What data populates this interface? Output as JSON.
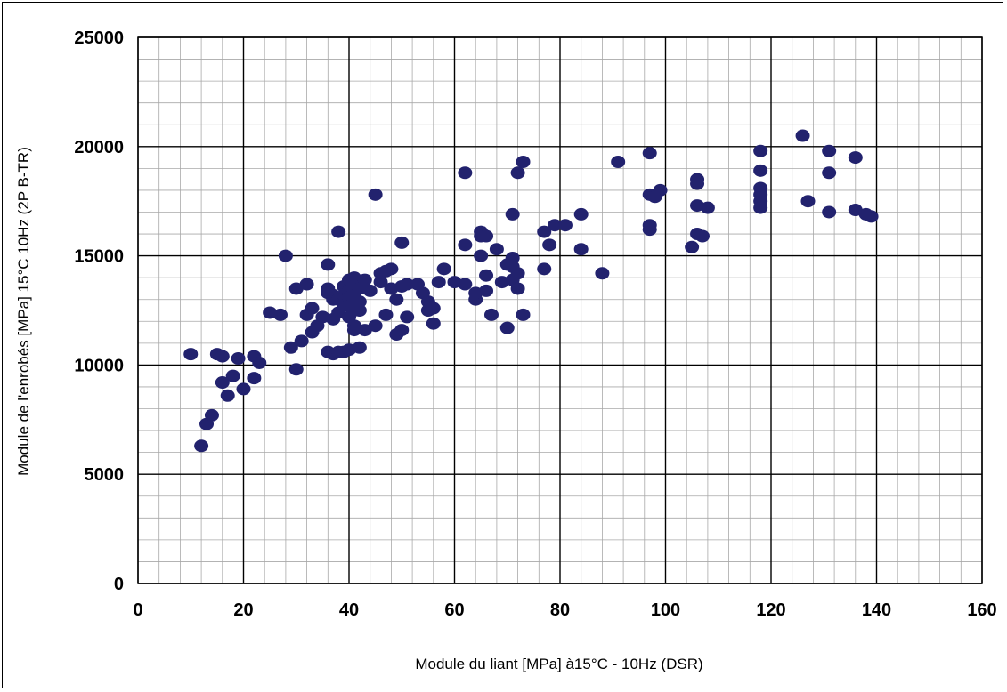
{
  "chart_data": {
    "type": "scatter",
    "title": "",
    "xlabel": "Module du liant [MPa] à15°C - 10Hz (DSR)",
    "ylabel": "Module de l'enrobés [MPa] 15°C 10Hz (2P B-TR)",
    "xlim": [
      0,
      160
    ],
    "ylim": [
      0,
      25000
    ],
    "x_ticks": [
      "0",
      "20",
      "40",
      "60",
      "80",
      "100",
      "120",
      "140",
      "160"
    ],
    "y_ticks": [
      "0",
      "5000",
      "10000",
      "15000",
      "20000",
      "25000"
    ],
    "grid": true,
    "colors": {
      "marker": "#22226e",
      "grid_major": "#000000",
      "grid_minor": "#a8a8a8"
    },
    "series": [
      {
        "x": [
          10,
          12,
          13,
          14,
          15,
          16,
          16,
          17,
          18,
          19,
          20,
          22,
          22,
          23,
          25,
          27,
          28,
          29,
          30,
          30,
          31,
          32,
          32,
          33,
          33,
          34,
          35,
          36,
          36,
          36,
          36,
          37,
          37,
          37,
          37,
          38,
          38,
          38,
          38,
          39,
          39,
          39,
          39,
          40,
          40,
          40,
          40,
          40,
          40,
          41,
          41,
          41,
          41,
          41,
          41,
          41,
          42,
          42,
          42,
          42,
          43,
          43,
          44,
          45,
          45,
          46,
          46,
          47,
          47,
          48,
          48,
          49,
          49,
          50,
          50,
          50,
          51,
          51,
          53,
          54,
          55,
          55,
          56,
          56,
          57,
          58,
          60,
          62,
          62,
          62,
          64,
          64,
          65,
          65,
          65,
          66,
          66,
          66,
          67,
          68,
          69,
          70,
          70,
          71,
          71,
          71,
          71,
          72,
          72,
          72,
          73,
          73,
          77,
          77,
          78,
          79,
          81,
          84,
          84,
          88,
          91,
          97,
          97,
          97,
          97,
          98,
          99,
          105,
          106,
          106,
          106,
          106,
          107,
          108,
          118,
          118,
          118,
          118,
          118,
          118,
          126,
          127,
          131,
          131,
          131,
          136,
          136,
          138,
          139
        ],
        "y": [
          10500,
          6300,
          7300,
          7700,
          10500,
          9200,
          10400,
          8600,
          9500,
          10300,
          8900,
          9400,
          10400,
          10100,
          12400,
          12300,
          15000,
          10800,
          9800,
          13500,
          11100,
          13700,
          12300,
          11500,
          12600,
          11800,
          12200,
          14600,
          10600,
          13300,
          13500,
          10500,
          13200,
          13000,
          12100,
          10600,
          16100,
          13000,
          12400,
          10600,
          13600,
          13200,
          12800,
          10700,
          13900,
          13400,
          13100,
          12700,
          12200,
          11800,
          14000,
          13600,
          13200,
          12800,
          12500,
          11600,
          10800,
          13500,
          12900,
          12500,
          11600,
          13900,
          13400,
          11800,
          17800,
          13800,
          14200,
          12300,
          14300,
          13500,
          14400,
          13000,
          11400,
          11600,
          15600,
          13600,
          12200,
          13700,
          13700,
          13300,
          12900,
          12500,
          11900,
          12600,
          13800,
          14400,
          13800,
          13700,
          18800,
          15500,
          13000,
          13300,
          15900,
          16100,
          15000,
          14100,
          13400,
          15900,
          12300,
          15300,
          13800,
          11700,
          14600,
          16900,
          14900,
          14500,
          13900,
          18800,
          13500,
          14200,
          12300,
          19300,
          16100,
          14400,
          15500,
          16400,
          16400,
          15300,
          16900,
          14200,
          19300,
          19700,
          17800,
          16400,
          16200,
          17700,
          18000,
          15400,
          18300,
          18500,
          17300,
          16000,
          15900,
          17200,
          19800,
          18900,
          18100,
          17800,
          17500,
          17200,
          20500,
          17500,
          19800,
          18800,
          17000,
          19500,
          17100,
          16900,
          16800
        ]
      }
    ]
  }
}
